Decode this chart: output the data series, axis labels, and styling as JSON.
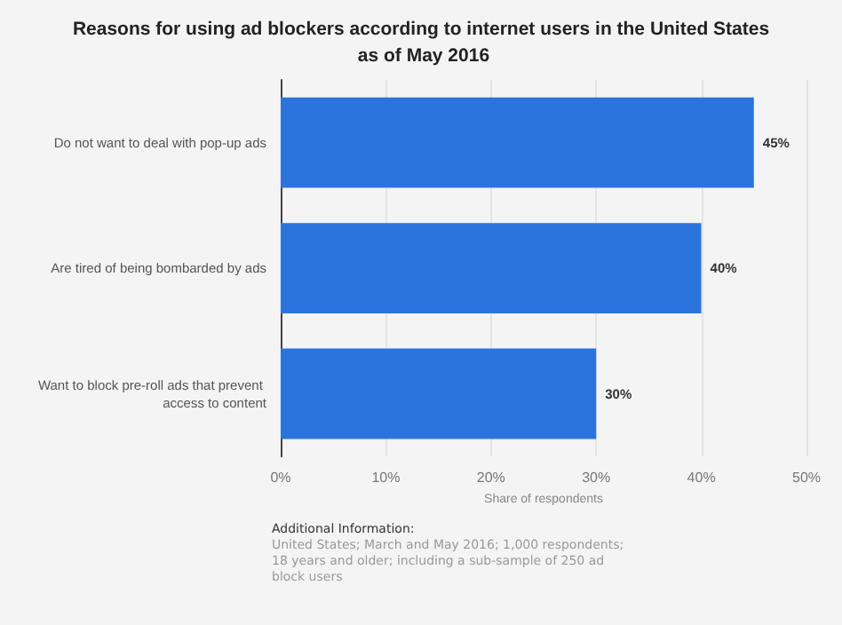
{
  "chart_data": {
    "type": "bar",
    "orientation": "horizontal",
    "title": "Reasons for using ad blockers according to internet users in the United States as of May 2016",
    "categories": [
      "Do not want to deal with pop-up ads",
      "Are tired of being bombarded by ads",
      "Want to block pre-roll ads that prevent access to content"
    ],
    "values": [
      45,
      40,
      30
    ],
    "value_labels": [
      "45%",
      "40%",
      "30%"
    ],
    "color": "#2b74dd",
    "xlabel": "Share of respondents",
    "xlim": [
      0,
      50
    ],
    "xticks": [
      {
        "value": 0,
        "label": "0%"
      },
      {
        "value": 10,
        "label": "10%"
      },
      {
        "value": 20,
        "label": "20%"
      },
      {
        "value": 30,
        "label": "30%"
      },
      {
        "value": 40,
        "label": "40%"
      },
      {
        "value": 50,
        "label": "50%"
      }
    ],
    "grid": "x",
    "annotations": [
      "Additional Information:",
      "United States; March and May 2016; 1,000 respondents; 18 years and older; including a sub-sample of 250 ad block users"
    ]
  }
}
